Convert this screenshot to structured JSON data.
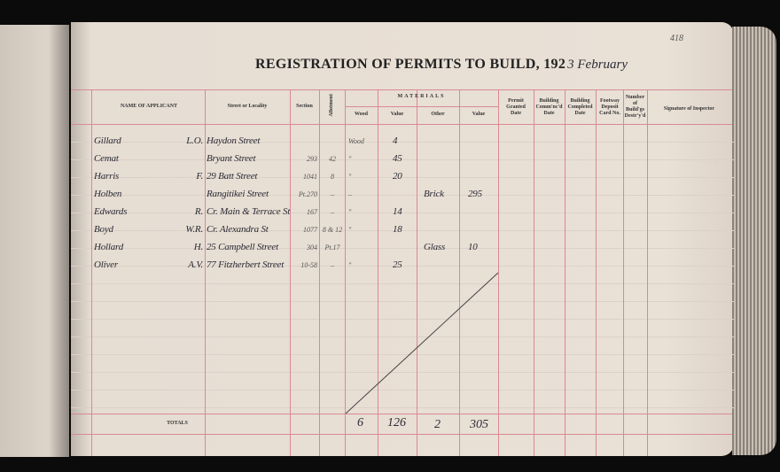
{
  "page_number": "418",
  "title": "REGISTRATION OF PERMITS TO BUILD, 192",
  "title_handwritten": "3 February",
  "headers": {
    "name": "NAME OF APPLICANT",
    "street": "Street or Locality",
    "section": "Section",
    "allotment": "Allotment",
    "materials": "MATERIALS",
    "wood": "Wood",
    "value1": "Value",
    "other": "Other",
    "value2": "Value",
    "permit": "Permit Granted Date",
    "commenced": "Building Comm'nc'd Date",
    "completed": "Building Completed Date",
    "footway": "Footway Deposit Card No.",
    "number": "Number of Build'gs Destr'y'd",
    "signature": "Signature of Inspector"
  },
  "rows": [
    {
      "name": "Gillard",
      "initials": "L.O.",
      "street": "Haydon Street",
      "section": "",
      "allotment": "",
      "wood": "Wood",
      "value": "4",
      "other": "",
      "other_value": ""
    },
    {
      "name": "Cemat",
      "initials": "",
      "street": "Bryant Street",
      "section": "293",
      "allotment": "42",
      "wood": "\"",
      "value": "45",
      "other": "",
      "other_value": ""
    },
    {
      "name": "Harris",
      "initials": "F.",
      "street": "29 Batt Street",
      "section": "1041",
      "allotment": "8",
      "wood": "\"",
      "value": "20",
      "other": "",
      "other_value": ""
    },
    {
      "name": "Holben",
      "initials": "",
      "street": "Rangitikei Street",
      "section": "Pt.270",
      "allotment": "–",
      "wood": "–",
      "value": "",
      "other": "Brick",
      "other_value": "295"
    },
    {
      "name": "Edwards",
      "initials": "R.",
      "street": "Cr. Main & Terrace St",
      "section": "167",
      "allotment": "–",
      "wood": "\"",
      "value": "14",
      "other": "",
      "other_value": ""
    },
    {
      "name": "Boyd",
      "initials": "W.R.",
      "street": "Cr. Alexandra St",
      "section": "1077",
      "allotment": "8 & 12",
      "wood": "\"",
      "value": "18",
      "other": "",
      "other_value": ""
    },
    {
      "name": "Hollard",
      "initials": "H.",
      "street": "25 Campbell Street",
      "section": "304",
      "allotment": "Pt.17",
      "wood": "",
      "value": "",
      "other": "Glass",
      "other_value": "10"
    },
    {
      "name": "Oliver",
      "initials": "A.V.",
      "street": "77 Fitzherbert Street",
      "section": "10-58",
      "allotment": "–",
      "wood": "\"",
      "value": "25",
      "other": "",
      "other_value": ""
    }
  ],
  "totals": {
    "label": "TOTALS",
    "wood": "6",
    "value": "126",
    "other": "2",
    "other_value": "305"
  }
}
